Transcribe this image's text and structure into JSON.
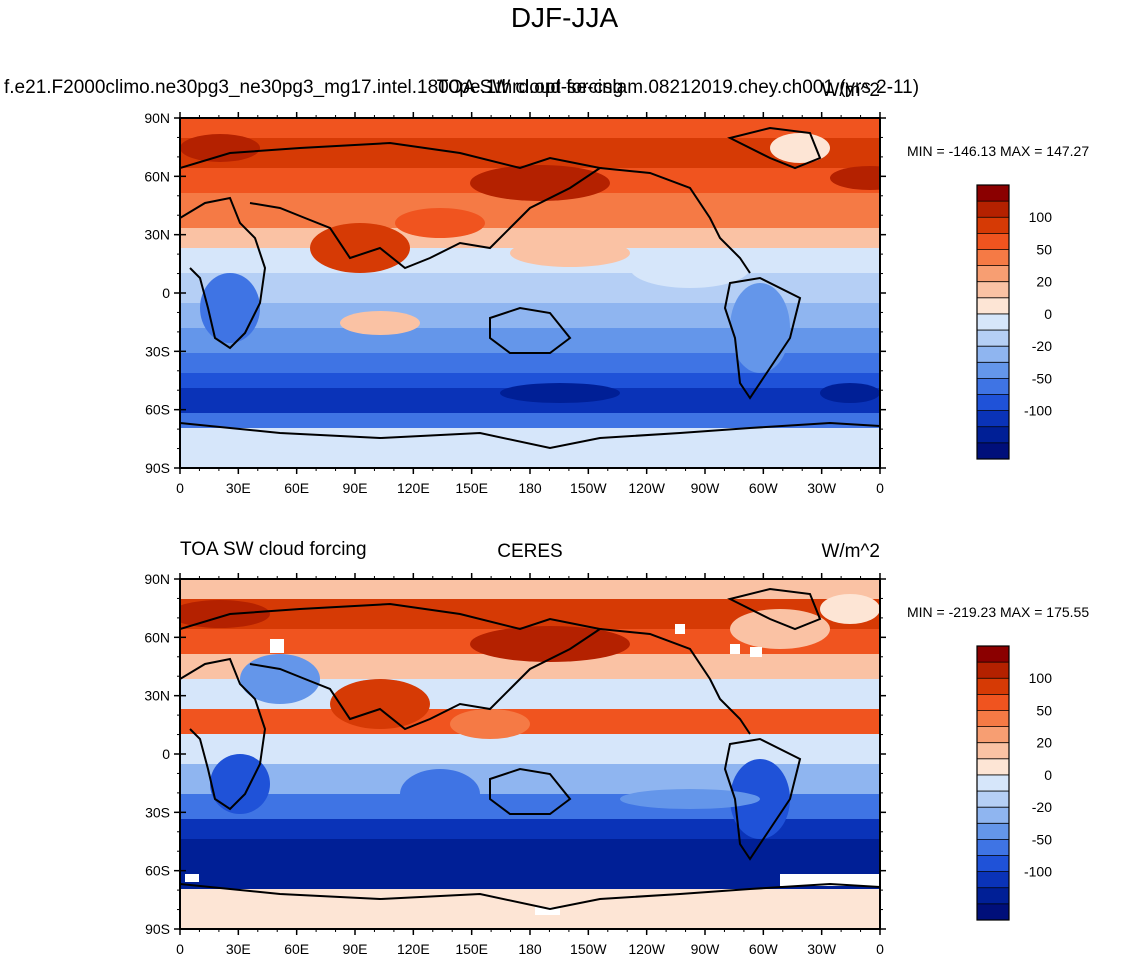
{
  "figure": {
    "title": "DJF-JJA"
  },
  "panels": [
    {
      "id": "model",
      "left_title": "f.e21.F2000climo.ne30pg3_ne30pg3_mg17.intel.1800pe.1thrd.opt-se-cslam.08212019.chey.ch001 (yrs 2-11)",
      "center_title": "TOA SW cloud forcing",
      "right_title": "W/m^2",
      "stats": "MIN = -146.13  MAX = 147.27"
    },
    {
      "id": "obs",
      "left_title": "TOA SW cloud forcing",
      "center_title": "CERES",
      "right_title": "W/m^2",
      "stats": "MIN = -219.23  MAX = 175.55"
    }
  ],
  "axes": {
    "lat_labels": [
      "90N",
      "60N",
      "30N",
      "0",
      "30S",
      "60S",
      "90S"
    ],
    "lon_labels": [
      "0",
      "30E",
      "60E",
      "90E",
      "120E",
      "150E",
      "180",
      "150W",
      "120W",
      "90W",
      "60W",
      "30W",
      "0"
    ]
  },
  "colorbar": {
    "labels": [
      "100",
      "50",
      "20",
      "0",
      "-20",
      "-50",
      "-100"
    ],
    "colors": [
      "#8b0000",
      "#b42100",
      "#d63a05",
      "#f0541f",
      "#f57a45",
      "#f79e72",
      "#fac2a4",
      "#fde5d5",
      "#d6e6fa",
      "#b5cff5",
      "#8fb5f0",
      "#6496ea",
      "#3f74e4",
      "#1f52d8",
      "#0a33b8",
      "#001f96",
      "#000f7a"
    ]
  },
  "chart_data": {
    "type": "heatmap",
    "description": "Global maps of TOA shortwave cloud forcing difference DJF minus JJA",
    "units": "W/m^2",
    "contour_levels": [
      -120,
      -100,
      -80,
      -65,
      -50,
      -40,
      -30,
      -20,
      -10,
      0,
      10,
      20,
      30,
      40,
      50,
      65,
      80,
      100,
      120
    ],
    "panels": [
      {
        "name": "model",
        "min": -146.13,
        "max": 147.27
      },
      {
        "name": "CERES",
        "min": -219.23,
        "max": 175.55
      }
    ],
    "x_range": [
      0,
      360
    ],
    "y_range": [
      -90,
      90
    ]
  }
}
